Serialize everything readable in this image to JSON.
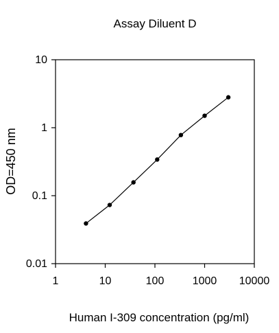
{
  "chart_data": {
    "type": "line",
    "title": "Assay Diluent D",
    "xlabel": "Human I-309 concentration (pg/ml)",
    "ylabel": "OD=450 nm",
    "x_scale": "log",
    "y_scale": "log",
    "xlim": [
      1,
      10000
    ],
    "ylim": [
      0.01,
      10
    ],
    "x_ticks": [
      1,
      10,
      100,
      1000,
      10000
    ],
    "x_tick_labels": [
      "1",
      "10",
      "100",
      "1000",
      "10000"
    ],
    "y_ticks": [
      0.01,
      0.1,
      1,
      10
    ],
    "y_tick_labels": [
      "0.01",
      "0.1",
      "1",
      "10"
    ],
    "grid": false,
    "series": [
      {
        "x": [
          4.1,
          12.3,
          37,
          111,
          333,
          1000,
          3000
        ],
        "y": [
          0.039,
          0.073,
          0.157,
          0.34,
          0.78,
          1.5,
          2.8
        ],
        "color": "#000000",
        "marker": "circle"
      }
    ]
  }
}
